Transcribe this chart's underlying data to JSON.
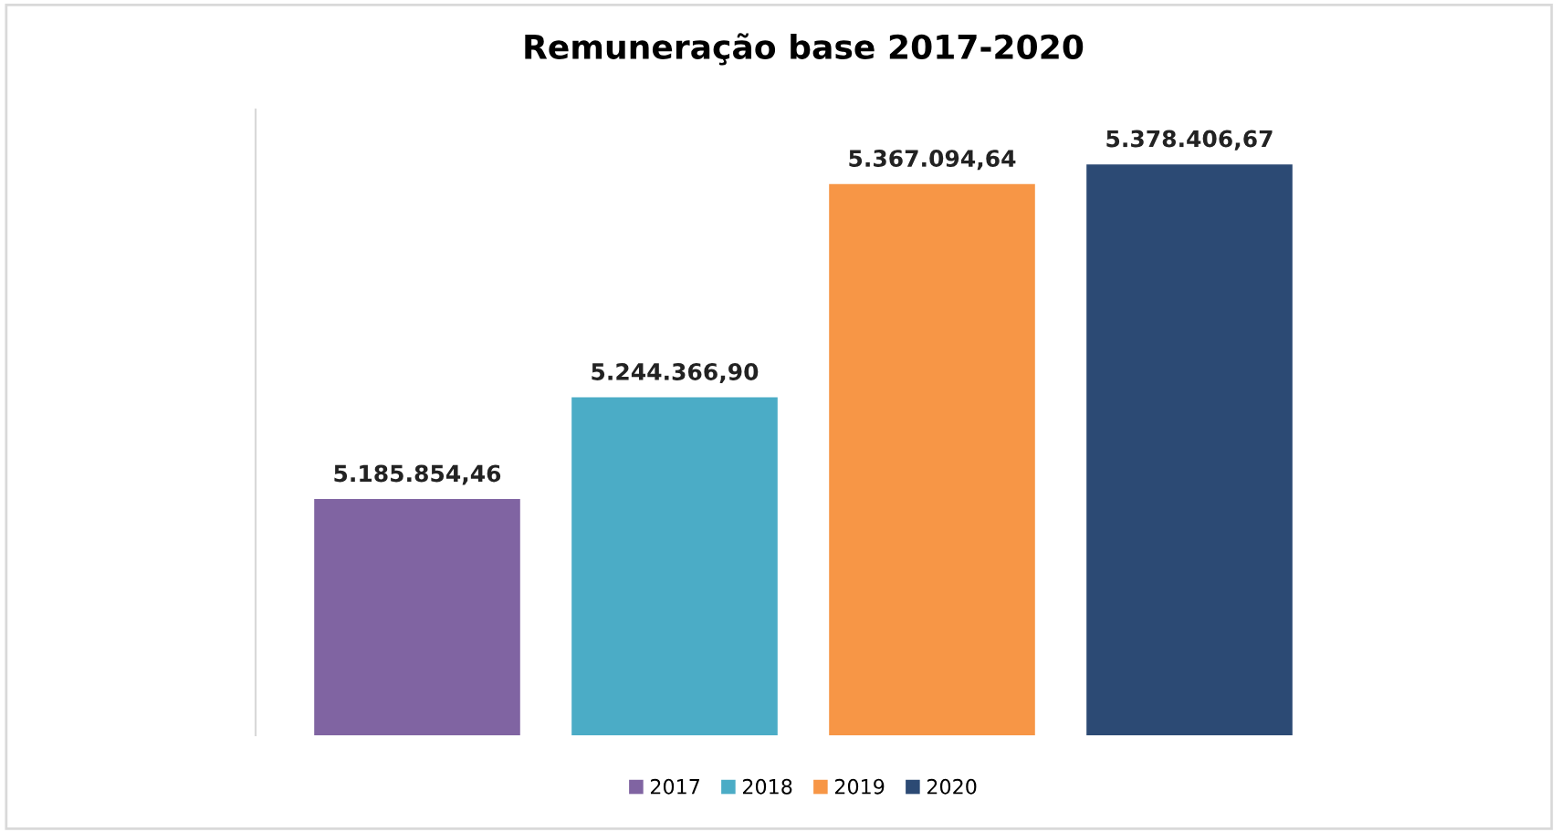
{
  "chart_data": {
    "type": "bar",
    "title": "Remuneração base 2017-2020",
    "categories": [
      null
    ],
    "series": [
      {
        "name": "2017",
        "color": "#8064a2",
        "values": [
          5185854.46
        ],
        "value_labels": [
          "5.185.854,46"
        ]
      },
      {
        "name": "2018",
        "color": "#4bacc6",
        "values": [
          5244366.9
        ],
        "value_labels": [
          "5.244.366,90"
        ]
      },
      {
        "name": "2019",
        "color": "#f79646",
        "values": [
          5367094.64
        ],
        "value_labels": [
          "5.367.094,64"
        ]
      },
      {
        "name": "2020",
        "color": "#2c4a74",
        "values": [
          5378406.67
        ],
        "value_labels": [
          "5.378.406,67"
        ]
      }
    ],
    "ylim": [
      5050000,
      5410000
    ],
    "tick_labels": false,
    "grid": false,
    "legend": "bottom"
  }
}
